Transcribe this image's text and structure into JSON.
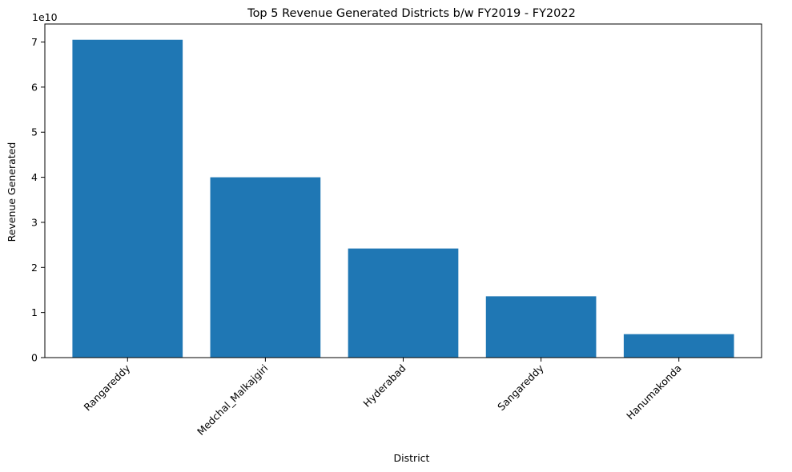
{
  "chart_data": {
    "type": "bar",
    "title": "Top 5 Revenue Generated Districts b/w FY2019 - FY2022",
    "xlabel": "District",
    "ylabel": "Revenue Generated",
    "y_offset_label": "1e10",
    "categories": [
      "Rangareddy",
      "Medchal_Malkajgiri",
      "Hyderabad",
      "Sangareddy",
      "Hanumakonda"
    ],
    "values": [
      70500000000,
      40000000000,
      24200000000,
      13600000000,
      5200000000
    ],
    "y_ticks": [
      0,
      1,
      2,
      3,
      4,
      5,
      6,
      7
    ],
    "y_tick_scale": 10000000000,
    "ylim": [
      0,
      74000000000
    ],
    "bar_color": "#1f77b4",
    "grid": false,
    "x_tick_rotation_deg": 45
  }
}
